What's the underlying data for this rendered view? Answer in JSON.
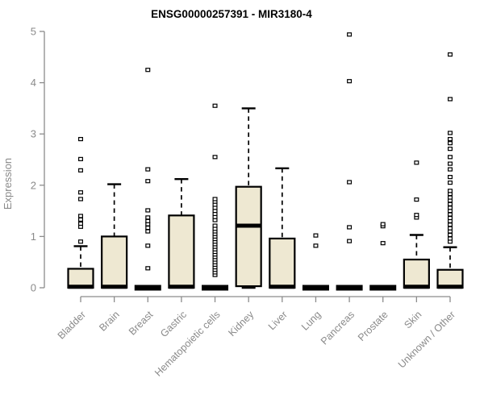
{
  "chart_data": {
    "type": "boxplot",
    "title": "ENSG00000257391 - MIR3180-4",
    "ylabel": "Expression",
    "xlabel": "",
    "ylim": [
      0,
      5
    ],
    "yticks": [
      0,
      1,
      2,
      3,
      4,
      5
    ],
    "grid": false,
    "legend": "none",
    "categories": [
      "Bladder",
      "Brain",
      "Breast",
      "Gastric",
      "Hematopoietic cells",
      "Kidney",
      "Liver",
      "Lung",
      "Pancreas",
      "Prostate",
      "Skin",
      "Unknown / Other"
    ],
    "series": [
      {
        "name": "Bladder",
        "whisker_low": 0,
        "q1": 0,
        "median": 0.02,
        "q3": 0.37,
        "whisker_high": 0.81,
        "outliers": [
          0.9,
          1.19,
          1.25,
          1.33,
          1.4,
          1.73,
          1.86,
          2.29,
          2.51,
          2.9
        ]
      },
      {
        "name": "Brain",
        "whisker_low": 0,
        "q1": 0,
        "median": 0.02,
        "q3": 1.0,
        "whisker_high": 2.02,
        "outliers": []
      },
      {
        "name": "Breast",
        "whisker_low": 0,
        "q1": 0,
        "median": 0,
        "q3": 0,
        "whisker_high": 0,
        "outliers": [
          0.38,
          0.82,
          1.1,
          1.17,
          1.24,
          1.3,
          1.37,
          1.51,
          2.08,
          2.31,
          4.25
        ]
      },
      {
        "name": "Gastric",
        "whisker_low": 0,
        "q1": 0,
        "median": 0.02,
        "q3": 1.41,
        "whisker_high": 2.12,
        "outliers": []
      },
      {
        "name": "Hematopoietic cells",
        "whisker_low": 0,
        "q1": 0,
        "median": 0,
        "q3": 0,
        "whisker_high": 0,
        "outliers": [
          0.25,
          0.3,
          0.35,
          0.4,
          0.45,
          0.5,
          0.55,
          0.6,
          0.65,
          0.7,
          0.75,
          0.8,
          0.85,
          0.9,
          0.95,
          1.0,
          1.05,
          1.1,
          1.15,
          1.21,
          1.32,
          1.38,
          1.44,
          1.5,
          1.56,
          1.62,
          1.68,
          1.73,
          2.55,
          3.55
        ]
      },
      {
        "name": "Kidney",
        "whisker_low": 0,
        "q1": 0.03,
        "median": 1.21,
        "q3": 1.97,
        "whisker_high": 3.5,
        "outliers": []
      },
      {
        "name": "Liver",
        "whisker_low": 0,
        "q1": 0,
        "median": 0.02,
        "q3": 0.96,
        "whisker_high": 2.33,
        "outliers": []
      },
      {
        "name": "Lung",
        "whisker_low": 0,
        "q1": 0,
        "median": 0,
        "q3": 0,
        "whisker_high": 0,
        "outliers": [
          0.82,
          1.02
        ]
      },
      {
        "name": "Pancreas",
        "whisker_low": 0,
        "q1": 0,
        "median": 0,
        "q3": 0,
        "whisker_high": 0,
        "outliers": [
          0.91,
          1.18,
          2.06,
          4.03,
          4.94
        ]
      },
      {
        "name": "Prostate",
        "whisker_low": 0,
        "q1": 0,
        "median": 0,
        "q3": 0,
        "whisker_high": 0,
        "outliers": [
          0.87,
          1.2,
          1.24
        ]
      },
      {
        "name": "Skin",
        "whisker_low": 0,
        "q1": 0,
        "median": 0.02,
        "q3": 0.55,
        "whisker_high": 1.03,
        "outliers": [
          1.37,
          1.42,
          1.72,
          2.44
        ]
      },
      {
        "name": "Unknown / Other",
        "whisker_low": 0,
        "q1": 0,
        "median": 0.02,
        "q3": 0.35,
        "whisker_high": 0.79,
        "outliers": [
          0.9,
          0.96,
          1.03,
          1.1,
          1.16,
          1.23,
          1.3,
          1.36,
          1.43,
          1.5,
          1.56,
          1.63,
          1.7,
          1.76,
          1.83,
          1.89,
          2.05,
          2.16,
          2.31,
          2.42,
          2.55,
          2.71,
          2.82,
          2.9,
          3.02,
          3.68,
          4.55
        ]
      }
    ],
    "colors": {
      "background": "#ffffff",
      "box_fill": "#EEE8D2",
      "box_stroke": "#000000",
      "median": "#000000",
      "whisker": "#000000",
      "outlier_stroke": "#000000",
      "outlier_fill": "#ffffff",
      "axis": "#8c8c8c",
      "tick_label": "#8a8a8a",
      "title": "#000000"
    }
  }
}
